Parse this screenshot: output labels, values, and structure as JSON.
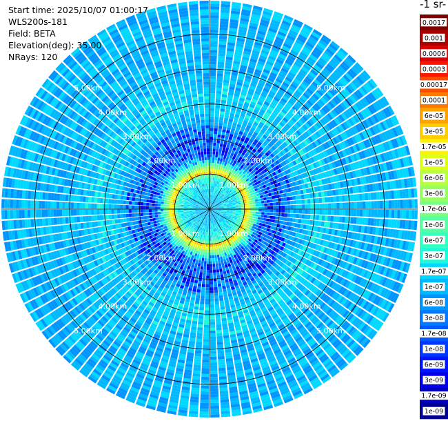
{
  "header": {
    "start_time": "Start time: 2025/10/07 01:00:17",
    "instrument": "WLS200s-181",
    "field": "Field: BETA",
    "elevation": "Elevation(deg): 35.00",
    "nrays": "NRays: 120"
  },
  "colorbar": {
    "title": "-1 sr-",
    "labels": [
      "0.0017",
      "0.001",
      "0.0006",
      "0.0003",
      "0.00017",
      "0.0001",
      "6e-05",
      "3e-05",
      "1.7e-05",
      "1e-05",
      "6e-06",
      "3e-06",
      "1.7e-06",
      "1e-06",
      "6e-07",
      "3e-07",
      "1.7e-07",
      "1e-07",
      "6e-08",
      "3e-08",
      "1.7e-08",
      "1e-08",
      "6e-09",
      "3e-09",
      "1.7e-09",
      "1e-09"
    ],
    "colors": [
      "#800000",
      "#a80000",
      "#d80000",
      "#ff1500",
      "#ff4d00",
      "#ff7800",
      "#ffa300",
      "#ffcc00",
      "#fff200",
      "#ddff19",
      "#b7ff40",
      "#96ff61",
      "#78ff7f",
      "#56ffa1",
      "#36ffc1",
      "#1bfbdb",
      "#00d8ff",
      "#00b8ff",
      "#0094ff",
      "#0078ff",
      "#0058ff",
      "#0038ff",
      "#0014ff",
      "#0000e8",
      "#0000c0",
      "#000090"
    ]
  },
  "chart_data": {
    "type": "heatmap",
    "projection": "polar",
    "field": "BETA",
    "nrays": 120,
    "elevation_deg": 35.0,
    "range_rings_km": [
      1,
      2,
      3,
      4,
      5
    ],
    "range_labels": [
      "1.00km",
      "2.00km",
      "3.00km",
      "4.00km",
      "5.00km"
    ],
    "max_range_km": 5.95,
    "spoke_step_deg": 30,
    "profile": {
      "range_km": [
        0.0,
        0.6,
        0.9,
        1.0,
        1.05,
        1.12,
        1.25,
        1.6,
        2.2,
        3.0,
        4.0,
        5.95
      ],
      "value": [
        1e-07,
        1.7e-07,
        3e-07,
        3e-06,
        0.0001,
        1e-05,
        1e-06,
        3e-08,
        6e-08,
        1.7e-07,
        1e-07,
        1e-07
      ]
    }
  }
}
